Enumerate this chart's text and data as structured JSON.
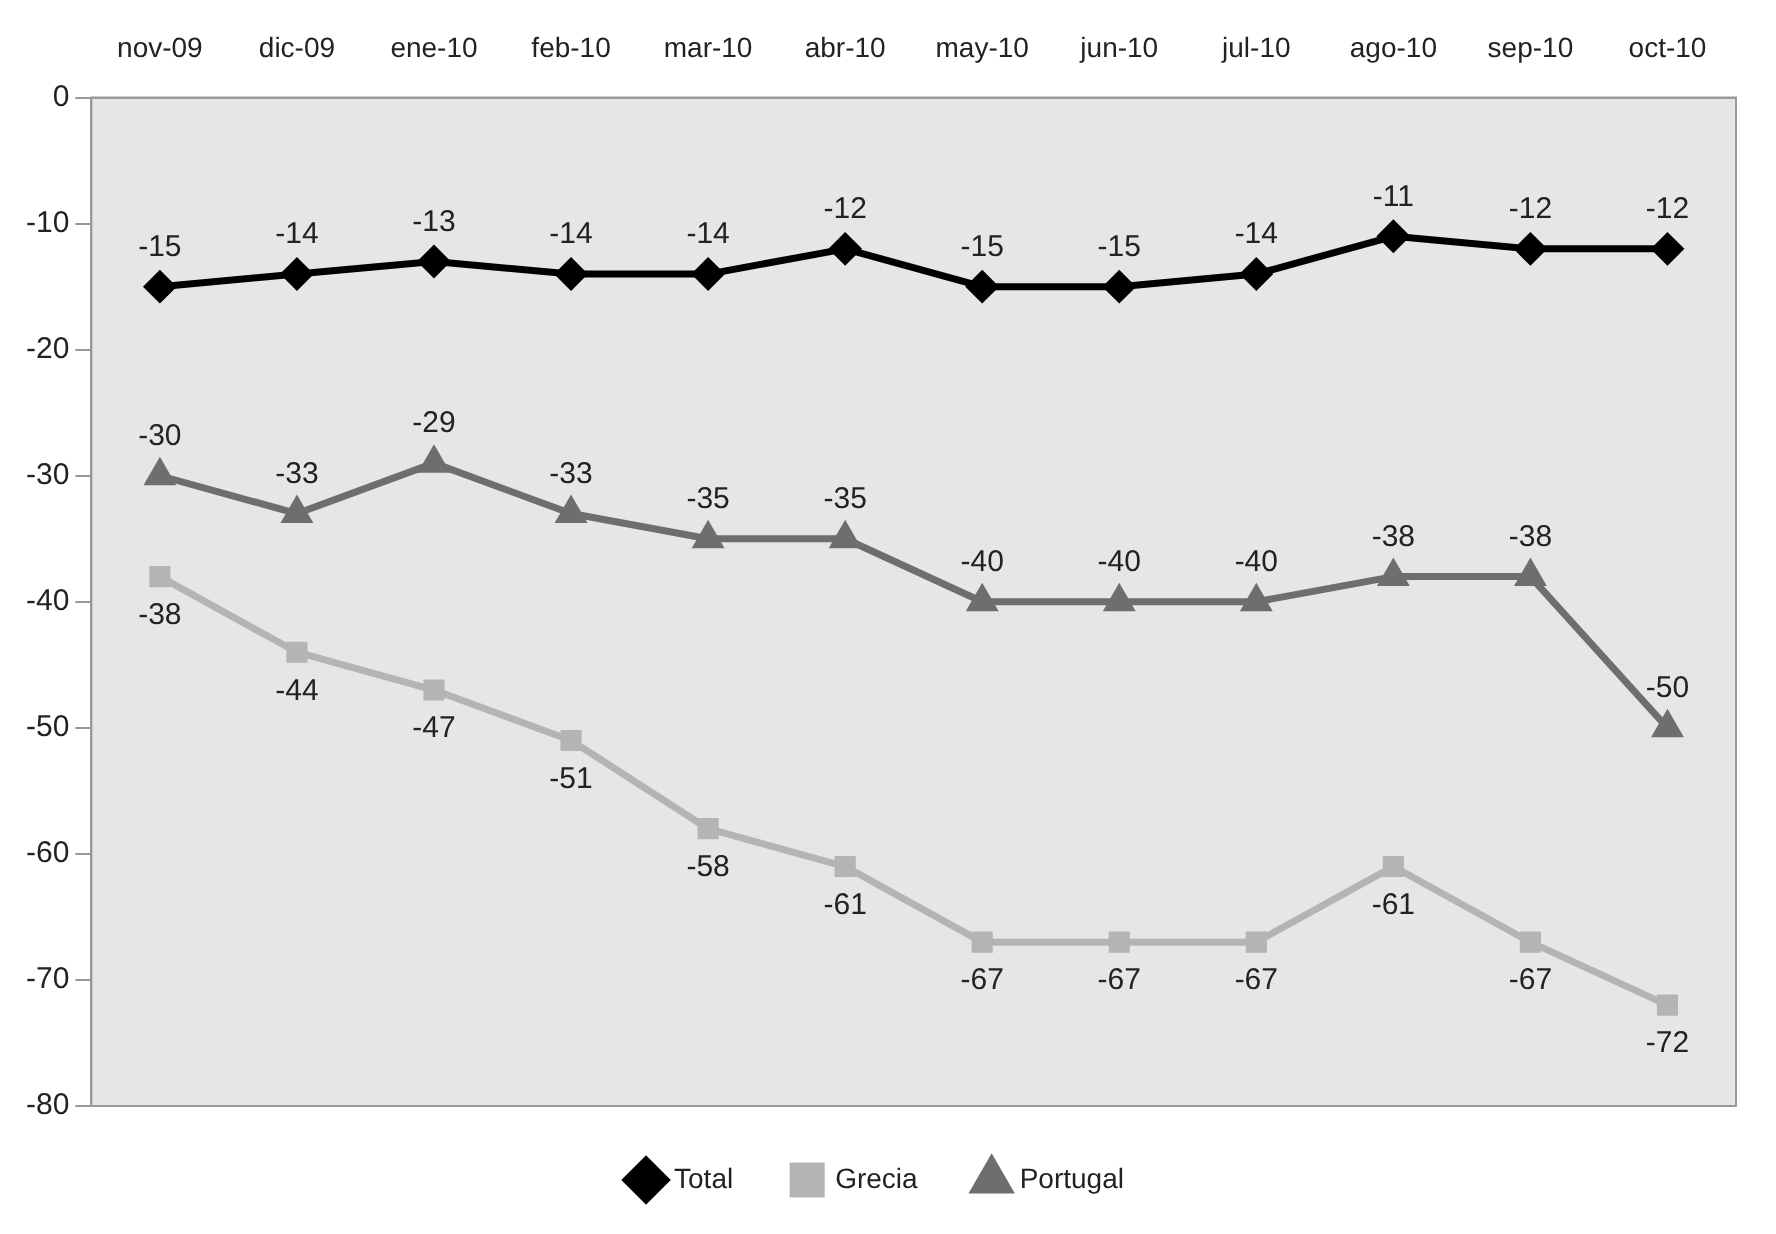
{
  "chart_data": {
    "type": "line",
    "categories": [
      "nov-09",
      "dic-09",
      "ene-10",
      "feb-10",
      "mar-10",
      "abr-10",
      "may-10",
      "jun-10",
      "jul-10",
      "ago-10",
      "sep-10",
      "oct-10"
    ],
    "series": [
      {
        "name": "Total",
        "color": "#000000",
        "marker": "diamond",
        "values": [
          -15,
          -14,
          -13,
          -14,
          -14,
          -12,
          -15,
          -15,
          -14,
          -11,
          -12,
          -12
        ]
      },
      {
        "name": "Grecia",
        "color": "#b4b4b4",
        "marker": "square",
        "values": [
          -38,
          -44,
          -47,
          -51,
          -58,
          -61,
          -67,
          -67,
          -67,
          -61,
          -67,
          -72
        ]
      },
      {
        "name": "Portugal",
        "color": "#6e6e6e",
        "marker": "triangle",
        "values": [
          -30,
          -33,
          -29,
          -33,
          -35,
          -35,
          -40,
          -40,
          -40,
          -38,
          -38,
          -50
        ]
      }
    ],
    "ylim": [
      -80,
      0
    ],
    "yticks": [
      0,
      -10,
      -20,
      -30,
      -40,
      -50,
      -60,
      -70,
      -80
    ],
    "grid": false,
    "legend": "bottom",
    "data_labels": true,
    "line_style": "solid"
  }
}
